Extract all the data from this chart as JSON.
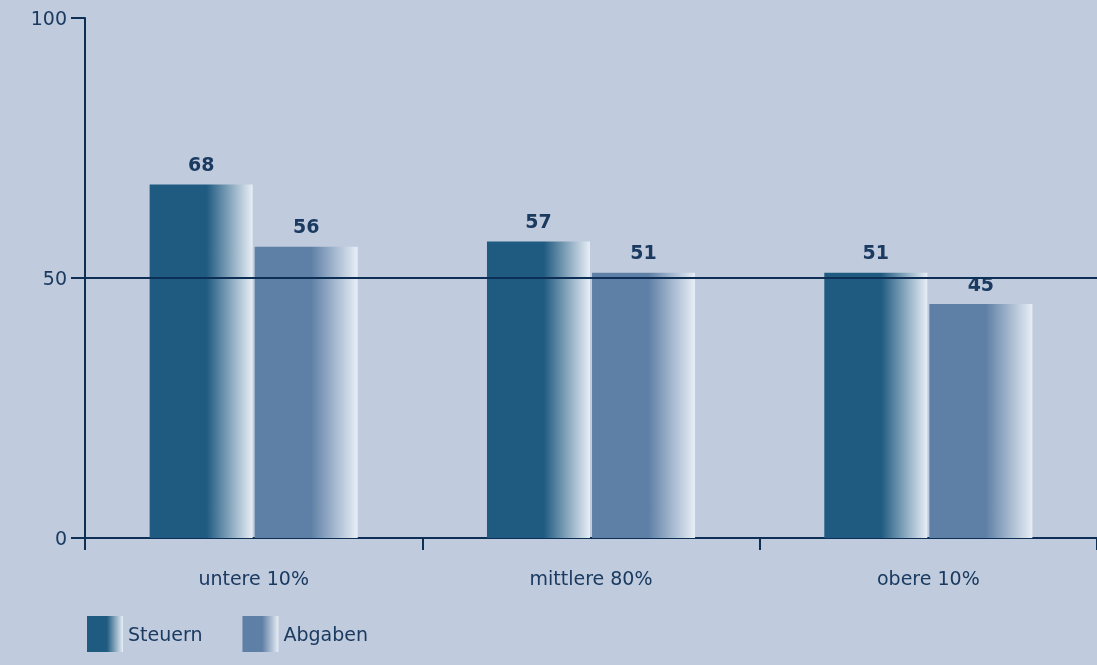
{
  "chart_data": {
    "type": "bar",
    "categories": [
      "untere 10%",
      "mittlere 80%",
      "obere 10%"
    ],
    "series": [
      {
        "name": "Steuern",
        "color": "#1f5a80",
        "values": [
          68,
          57,
          51
        ]
      },
      {
        "name": "Abgaben",
        "color": "#5f80a6",
        "values": [
          56,
          51,
          45
        ]
      }
    ],
    "ylim": [
      0,
      100
    ],
    "yticks": [
      0,
      50,
      100
    ],
    "ref_lines": [
      {
        "axis": "y",
        "value": 50
      }
    ],
    "legend": "bottom left",
    "data_labels": true
  }
}
